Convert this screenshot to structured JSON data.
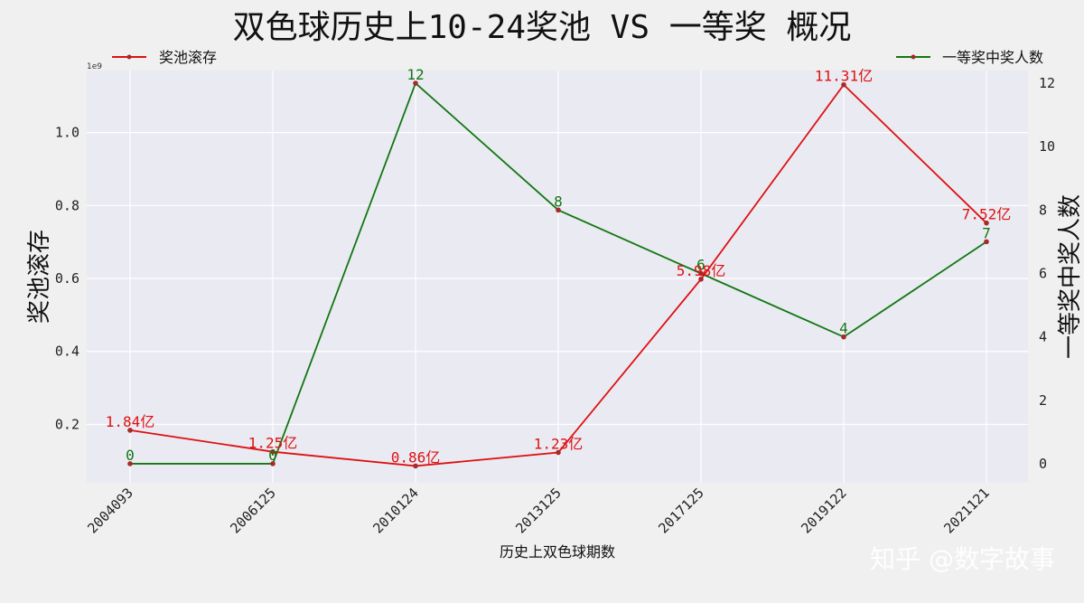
{
  "chart_data": {
    "type": "line",
    "title": "双色球历史上10-24奖池 VS 一等奖 概况",
    "xlabel": "历史上双色球期数",
    "ylabel_left": "奖池滚存",
    "ylabel_right": "一等奖中奖人数",
    "left_axis_multiplier": "1e9",
    "categories": [
      "2004093",
      "2006125",
      "2010124",
      "2013125",
      "2017125",
      "2019122",
      "2021121"
    ],
    "ylim_left": [
      0.04,
      1.17
    ],
    "left_ticks": [
      "0.2",
      "0.4",
      "0.6",
      "0.8",
      "1.0"
    ],
    "ylim_right": [
      -0.6,
      12.4
    ],
    "right_ticks": [
      "0",
      "2",
      "4",
      "6",
      "8",
      "10",
      "12"
    ],
    "grid": true,
    "series": [
      {
        "name": "奖池滚存",
        "axis": "left",
        "color": "#dd1111",
        "values": [
          0.184,
          0.125,
          0.086,
          0.123,
          0.598,
          1.131,
          0.752
        ],
        "labels": [
          "1.84亿",
          "1.25亿",
          "0.86亿",
          "1.23亿",
          "5.98亿",
          "11.31亿",
          "7.52亿"
        ],
        "legend_position": "top-left"
      },
      {
        "name": "一等奖中奖人数",
        "axis": "right",
        "color": "#117711",
        "values": [
          0,
          0,
          12,
          8,
          6,
          4,
          7
        ],
        "labels": [
          "0",
          "0",
          "12",
          "8",
          "6",
          "4",
          "7"
        ],
        "legend_position": "top-right"
      }
    ]
  },
  "watermark": "知乎 @数字故事"
}
